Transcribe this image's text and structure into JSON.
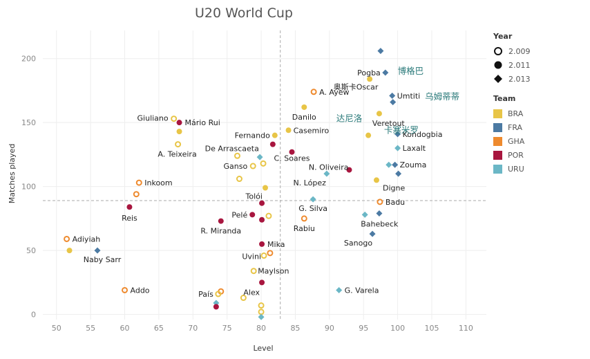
{
  "chart_data": {
    "type": "scatter",
    "title": "U20 World Cup",
    "xlabel": "Level",
    "ylabel": "Matches played",
    "xlim": [
      48,
      113
    ],
    "ylim": [
      -4,
      222
    ],
    "xticks": [
      50,
      55,
      60,
      65,
      70,
      75,
      80,
      85,
      90,
      95,
      100,
      105,
      110
    ],
    "yticks": [
      0,
      50,
      100,
      150,
      200
    ],
    "ref_x": 82.8,
    "ref_y": 89,
    "colors": {
      "BRA": "#E8C547",
      "FRA": "#4C7AA3",
      "GHA": "#EE8A2E",
      "POR": "#A8163F",
      "URU": "#6BB7C6"
    },
    "points": [
      {
        "x": 67.2,
        "y": 153,
        "team": "BRA",
        "year": "2.009",
        "label": "Giuliano"
      },
      {
        "x": 68.0,
        "y": 143,
        "team": "BRA",
        "year": "2.011",
        "label": ""
      },
      {
        "x": 67.8,
        "y": 133,
        "team": "BRA",
        "year": "2.009",
        "label": "A. Teixeira"
      },
      {
        "x": 68.0,
        "y": 150,
        "team": "POR",
        "year": "2.011",
        "label": "Mário Rui"
      },
      {
        "x": 82.0,
        "y": 140,
        "team": "BRA",
        "year": "2.011",
        "label": "Fernando"
      },
      {
        "x": 81.7,
        "y": 133,
        "team": "POR",
        "year": "2.011",
        "label": "De Arrascaeta"
      },
      {
        "x": 84.0,
        "y": 144,
        "team": "BRA",
        "year": "2.011",
        "label": "Casemiro"
      },
      {
        "x": 84.5,
        "y": 127,
        "team": "POR",
        "year": "2.011",
        "label": "C. Soares"
      },
      {
        "x": 79.8,
        "y": 123,
        "team": "URU",
        "year": "2.013",
        "label": ""
      },
      {
        "x": 76.5,
        "y": 124,
        "team": "BRA",
        "year": "2.009",
        "label": ""
      },
      {
        "x": 80.3,
        "y": 118,
        "team": "BRA",
        "year": "2.009",
        "label": ""
      },
      {
        "x": 78.8,
        "y": 116,
        "team": "BRA",
        "year": "2.009",
        "label": "Ganso"
      },
      {
        "x": 76.8,
        "y": 106,
        "team": "BRA",
        "year": "2.009",
        "label": ""
      },
      {
        "x": 80.6,
        "y": 99,
        "team": "BRA",
        "year": "2.011",
        "label": "Tolói"
      },
      {
        "x": 86.3,
        "y": 162,
        "team": "BRA",
        "year": "2.011",
        "label": "Danilo"
      },
      {
        "x": 87.7,
        "y": 174,
        "team": "GHA",
        "year": "2.009",
        "label": "A. Ayew"
      },
      {
        "x": 95.9,
        "y": 184,
        "team": "BRA",
        "year": "2.011",
        "label": "奥斯卡Oscar"
      },
      {
        "x": 97.5,
        "y": 206,
        "team": "FRA",
        "year": "2.013",
        "label": ""
      },
      {
        "x": 98.2,
        "y": 189,
        "team": "FRA",
        "year": "2.013",
        "label": "Pogba"
      },
      {
        "x": 99.2,
        "y": 171,
        "team": "FRA",
        "year": "2.013",
        "label": "Umtiti"
      },
      {
        "x": 99.3,
        "y": 166,
        "team": "FRA",
        "year": "2.013",
        "label": ""
      },
      {
        "x": 97.3,
        "y": 157,
        "team": "BRA",
        "year": "2.011",
        "label": "Veretout"
      },
      {
        "x": 95.7,
        "y": 140,
        "team": "BRA",
        "year": "2.011",
        "label": ""
      },
      {
        "x": 100.0,
        "y": 141,
        "team": "FRA",
        "year": "2.013",
        "label": "Kondogbia"
      },
      {
        "x": 100.0,
        "y": 130,
        "team": "URU",
        "year": "2.013",
        "label": "Laxalt"
      },
      {
        "x": 98.7,
        "y": 117,
        "team": "URU",
        "year": "2.013",
        "label": ""
      },
      {
        "x": 99.6,
        "y": 117,
        "team": "FRA",
        "year": "2.013",
        "label": "Zouma"
      },
      {
        "x": 100.1,
        "y": 110,
        "team": "FRA",
        "year": "2.013",
        "label": ""
      },
      {
        "x": 96.9,
        "y": 105,
        "team": "BRA",
        "year": "2.011",
        "label": "Digne"
      },
      {
        "x": 92.9,
        "y": 113,
        "team": "POR",
        "year": "2.011",
        "label": "N. Oliveira"
      },
      {
        "x": 89.6,
        "y": 110,
        "team": "URU",
        "year": "2.013",
        "label": "N. López"
      },
      {
        "x": 87.6,
        "y": 90,
        "team": "URU",
        "year": "2.013",
        "label": "G. Silva"
      },
      {
        "x": 97.4,
        "y": 88,
        "team": "GHA",
        "year": "2.009",
        "label": "Badu"
      },
      {
        "x": 97.3,
        "y": 79,
        "team": "FRA",
        "year": "2.013",
        "label": ""
      },
      {
        "x": 95.2,
        "y": 78,
        "team": "URU",
        "year": "2.013",
        "label": "Bahebeck"
      },
      {
        "x": 96.3,
        "y": 63,
        "team": "FRA",
        "year": "2.013",
        "label": "Sanogo"
      },
      {
        "x": 86.3,
        "y": 75,
        "team": "GHA",
        "year": "2.009",
        "label": "Rabiu"
      },
      {
        "x": 62.1,
        "y": 103,
        "team": "GHA",
        "year": "2.009",
        "label": "Inkoom"
      },
      {
        "x": 61.7,
        "y": 94,
        "team": "GHA",
        "year": "2.009",
        "label": ""
      },
      {
        "x": 60.7,
        "y": 84,
        "team": "POR",
        "year": "2.011",
        "label": "Reis"
      },
      {
        "x": 80.1,
        "y": 87,
        "team": "POR",
        "year": "2.011",
        "label": ""
      },
      {
        "x": 81.1,
        "y": 77,
        "team": "BRA",
        "year": "2.009",
        "label": ""
      },
      {
        "x": 78.7,
        "y": 78,
        "team": "POR",
        "year": "2.011",
        "label": "Pelé"
      },
      {
        "x": 80.1,
        "y": 74,
        "team": "POR",
        "year": "2.011",
        "label": ""
      },
      {
        "x": 74.1,
        "y": 73,
        "team": "POR",
        "year": "2.011",
        "label": "R. Miranda"
      },
      {
        "x": 80.1,
        "y": 55,
        "team": "POR",
        "year": "2.011",
        "label": "Mika"
      },
      {
        "x": 81.3,
        "y": 48,
        "team": "GHA",
        "year": "2.009",
        "label": ""
      },
      {
        "x": 80.4,
        "y": 46,
        "team": "BRA",
        "year": "2.009",
        "label": "Uvini"
      },
      {
        "x": 78.9,
        "y": 34,
        "team": "BRA",
        "year": "2.009",
        "label": "Maylson"
      },
      {
        "x": 80.1,
        "y": 25,
        "team": "POR",
        "year": "2.011",
        "label": ""
      },
      {
        "x": 51.5,
        "y": 59,
        "team": "GHA",
        "year": "2.009",
        "label": "Adiyiah"
      },
      {
        "x": 51.9,
        "y": 50,
        "team": "BRA",
        "year": "2.011",
        "label": ""
      },
      {
        "x": 56.0,
        "y": 50,
        "team": "FRA",
        "year": "2.013",
        "label": "Naby Sarr"
      },
      {
        "x": 60.0,
        "y": 19,
        "team": "GHA",
        "year": "2.009",
        "label": "Addo"
      },
      {
        "x": 74.1,
        "y": 18,
        "team": "GHA",
        "year": "2.009",
        "label": ""
      },
      {
        "x": 73.7,
        "y": 16,
        "team": "BRA",
        "year": "2.009",
        "label": "País"
      },
      {
        "x": 77.4,
        "y": 13,
        "team": "BRA",
        "year": "2.009",
        "label": "Alex"
      },
      {
        "x": 73.4,
        "y": 9,
        "team": "URU",
        "year": "2.013",
        "label": ""
      },
      {
        "x": 73.4,
        "y": 6,
        "team": "POR",
        "year": "2.011",
        "label": ""
      },
      {
        "x": 80.0,
        "y": 7,
        "team": "BRA",
        "year": "2.009",
        "label": ""
      },
      {
        "x": 80.0,
        "y": 2,
        "team": "BRA",
        "year": "2.009",
        "label": ""
      },
      {
        "x": 80.0,
        "y": -2,
        "team": "URU",
        "year": "2.013",
        "label": ""
      },
      {
        "x": 91.4,
        "y": 19,
        "team": "URU",
        "year": "2.013",
        "label": "G. Varela"
      }
    ],
    "annotations": [
      {
        "text": "博格巴",
        "x": 100.0,
        "y": 190
      },
      {
        "text": "乌姆蒂蒂",
        "x": 104.0,
        "y": 170
      },
      {
        "text": "达尼洛",
        "x": 91.0,
        "y": 153
      },
      {
        "text": "卡塞米罗",
        "x": 98.0,
        "y": 144
      }
    ],
    "legend": {
      "year_title": "Year",
      "years": [
        {
          "label": "2.009",
          "shape": "open-circle"
        },
        {
          "label": "2.011",
          "shape": "filled-circle"
        },
        {
          "label": "2.013",
          "shape": "diamond"
        }
      ],
      "team_title": "Team",
      "teams": [
        "BRA",
        "FRA",
        "GHA",
        "POR",
        "URU"
      ]
    }
  }
}
